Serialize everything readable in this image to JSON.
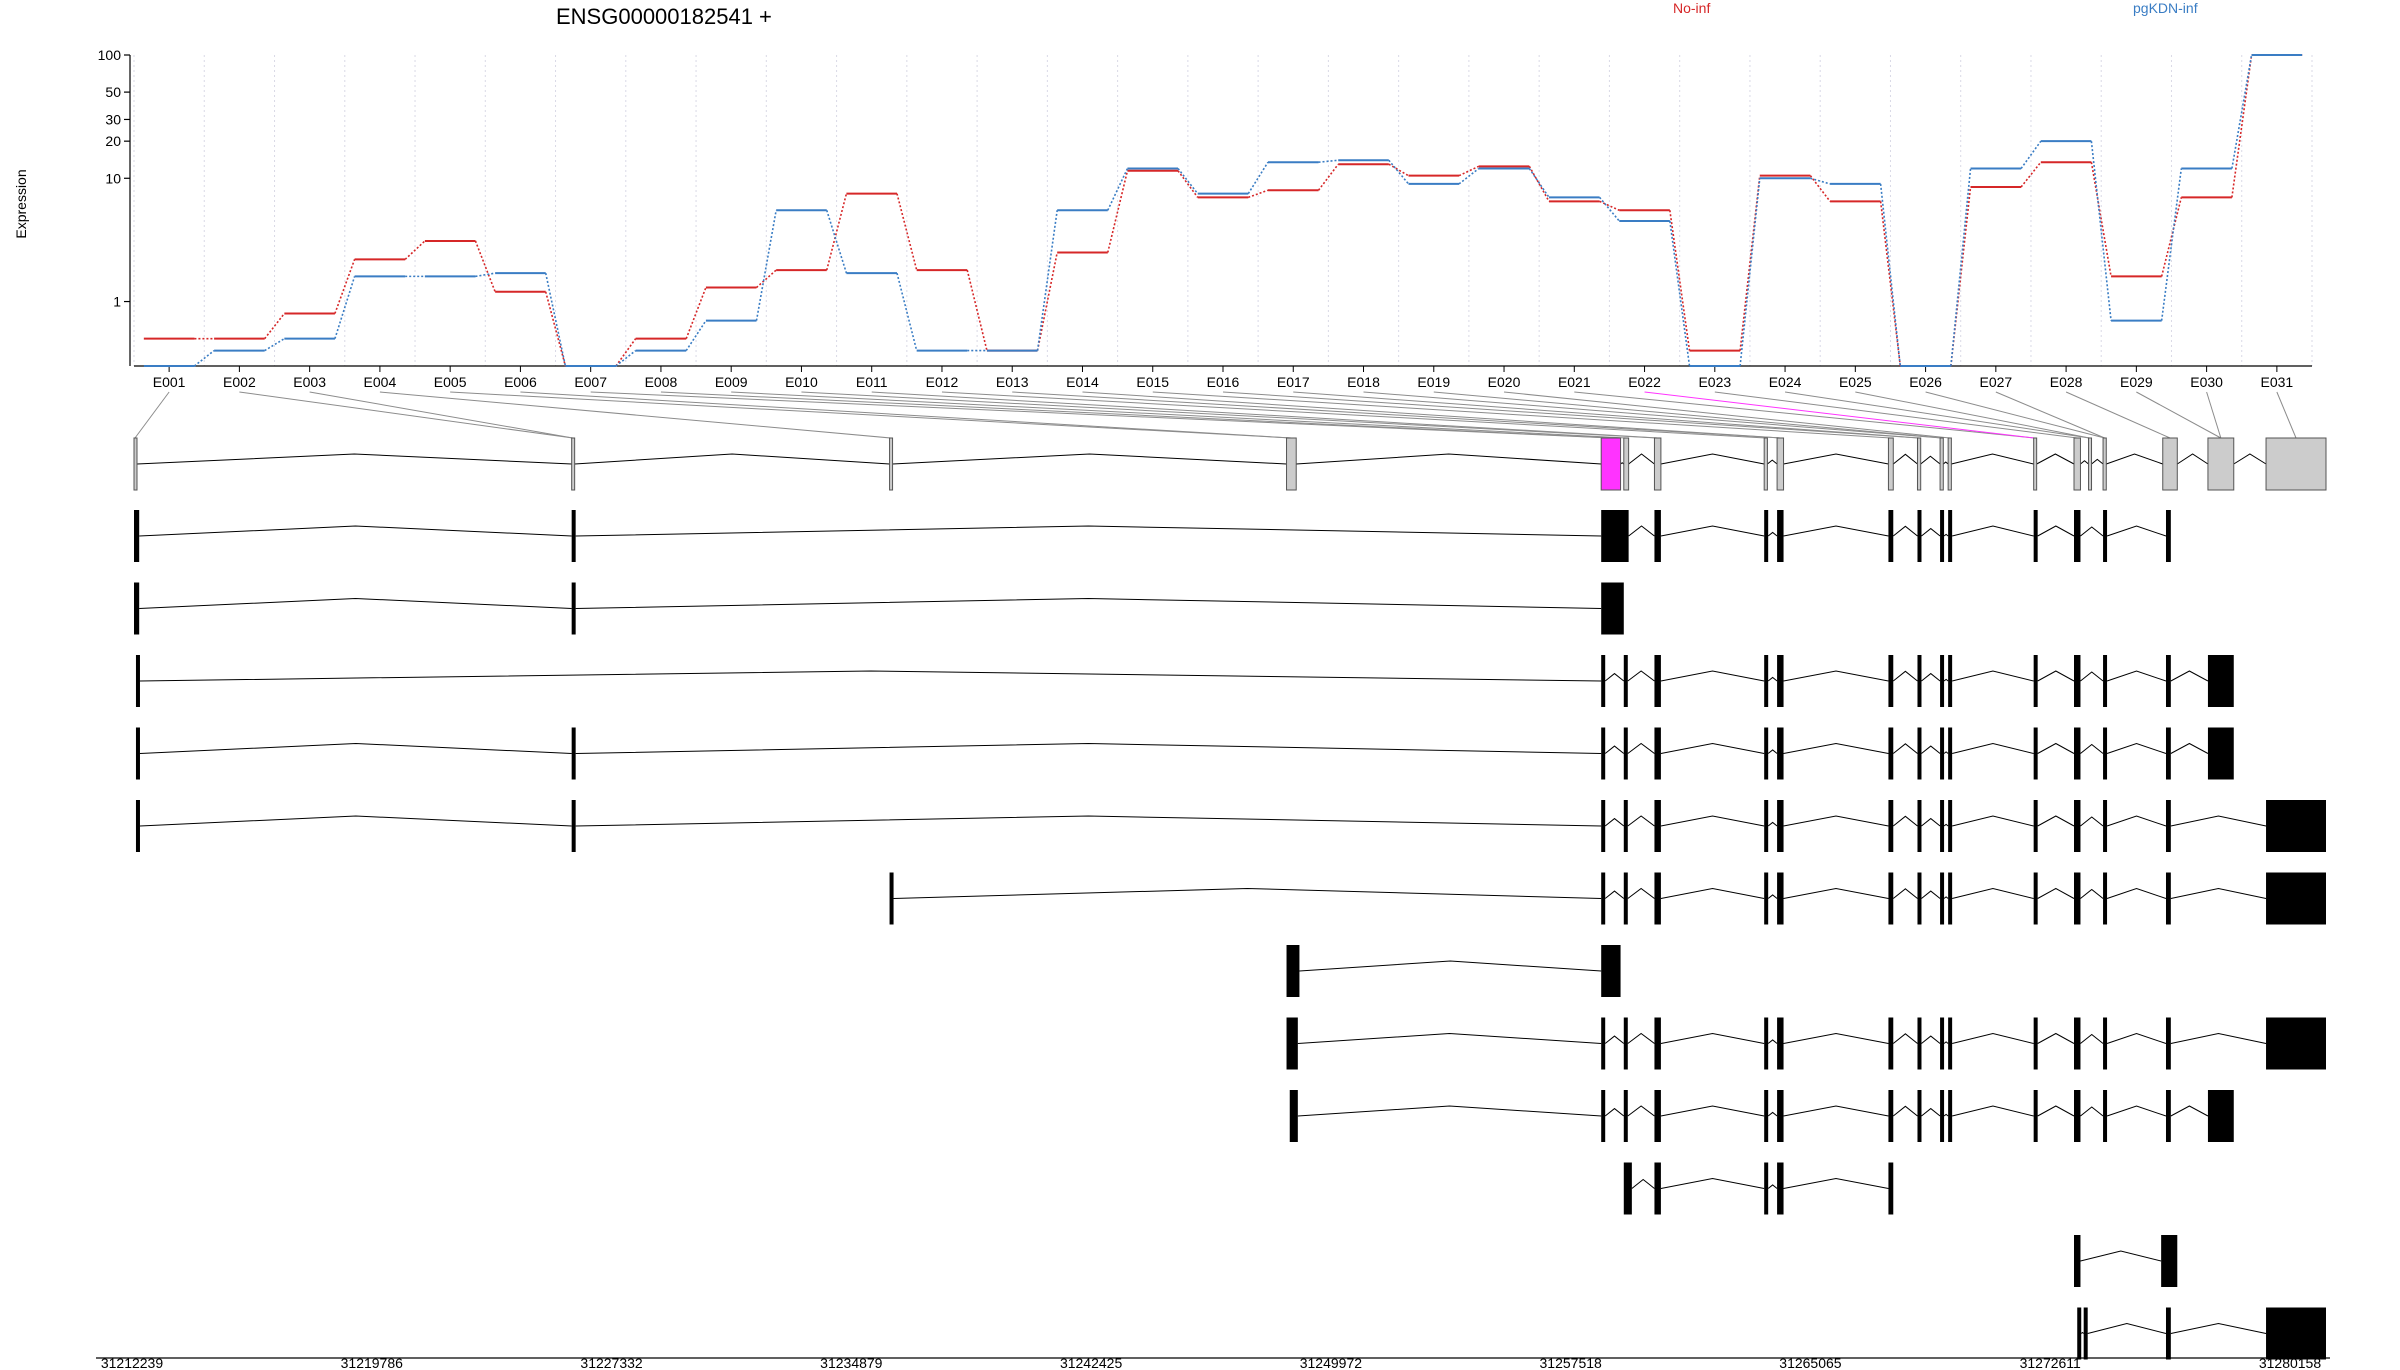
{
  "chart_data": {
    "type": "line",
    "title": "ENSG00000182541 +",
    "ylabel": "Expression",
    "xlabel": "",
    "y_scale": "log",
    "ylim": [
      0.3,
      100
    ],
    "y_ticks": [
      1,
      10,
      20,
      30,
      50,
      100
    ],
    "grid": "vertical dotted lines at exon bins",
    "legend_placement": "top, labels colored by series",
    "categories": [
      "E001",
      "E002",
      "E003",
      "E004",
      "E005",
      "E006",
      "E007",
      "E008",
      "E009",
      "E010",
      "E011",
      "E012",
      "E013",
      "E014",
      "E015",
      "E016",
      "E017",
      "E018",
      "E019",
      "E020",
      "E021",
      "E022",
      "E023",
      "E024",
      "E025",
      "E026",
      "E027",
      "E028",
      "E029",
      "E030",
      "E031"
    ],
    "series": [
      {
        "name": "No-inf",
        "color": "#d62728",
        "values": [
          0.5,
          0.5,
          0.8,
          2.2,
          3.1,
          1.2,
          0.3,
          0.5,
          1.3,
          1.8,
          7.5,
          1.8,
          0.4,
          2.5,
          11.5,
          7.0,
          8.0,
          13.0,
          10.5,
          12.5,
          6.5,
          5.5,
          0.4,
          10.5,
          6.5,
          0.3,
          8.5,
          13.5,
          1.6,
          7.0,
          100
        ]
      },
      {
        "name": "pgKDN-inf",
        "color": "#3a7dc4",
        "values": [
          0.3,
          0.4,
          0.5,
          1.6,
          1.6,
          1.7,
          0.3,
          0.4,
          0.7,
          5.5,
          1.7,
          0.4,
          0.4,
          5.5,
          12.0,
          7.5,
          13.5,
          14.0,
          9.0,
          12.0,
          7.0,
          4.5,
          0.3,
          10.0,
          9.0,
          0.3,
          12.0,
          20.0,
          0.7,
          12.0,
          100
        ]
      }
    ],
    "genomic_axis_labels": [
      "31212239",
      "31219786",
      "31227332",
      "31234879",
      "31242425",
      "31249972",
      "31257518",
      "31265065",
      "31272611",
      "31280158"
    ],
    "genomic_range": [
      31212239,
      31280158
    ],
    "highlighted_exon": "E022",
    "highlight_color": "#ff33ff",
    "gene_model": [
      [
        31212239,
        31212300
      ],
      [
        31225800,
        31225870
      ],
      [
        31235650,
        31235720
      ],
      [
        31247950,
        31248250
      ],
      [
        31257700,
        31258300
      ],
      [
        31258400,
        31258550
      ],
      [
        31259350,
        31259550
      ],
      [
        31262750,
        31262850
      ],
      [
        31263150,
        31263350
      ],
      [
        31266600,
        31266750
      ],
      [
        31267500,
        31267600
      ],
      [
        31268200,
        31268300
      ],
      [
        31268450,
        31268550
      ],
      [
        31271100,
        31271150
      ],
      [
        31272350,
        31272550
      ],
      [
        31272800,
        31272850
      ],
      [
        31273250,
        31273350
      ],
      [
        31275100,
        31275550
      ],
      [
        31276500,
        31277300
      ],
      [
        31278300,
        31280158
      ]
    ],
    "transcripts": [
      [
        [
          31212239,
          31212400
        ],
        [
          31225800,
          31225900
        ],
        [
          31257700,
          31258550
        ],
        [
          31259350,
          31259550
        ],
        [
          31262750,
          31262850
        ],
        [
          31263150,
          31263350
        ],
        [
          31266600,
          31266750
        ],
        [
          31267500,
          31267600
        ],
        [
          31268200,
          31268300
        ],
        [
          31268450,
          31268550
        ],
        [
          31271100,
          31271150
        ],
        [
          31272350,
          31272550
        ],
        [
          31273250,
          31273350
        ],
        [
          31275200,
          31275350
        ]
      ],
      [
        [
          31212239,
          31212400
        ],
        [
          31225800,
          31225900
        ],
        [
          31257700,
          31258400
        ]
      ],
      [
        [
          31212300,
          31212400
        ],
        [
          31257700,
          31257800
        ],
        [
          31258400,
          31258500
        ],
        [
          31259350,
          31259550
        ],
        [
          31262750,
          31262850
        ],
        [
          31263150,
          31263350
        ],
        [
          31266600,
          31266750
        ],
        [
          31267500,
          31267600
        ],
        [
          31268200,
          31268300
        ],
        [
          31268450,
          31268550
        ],
        [
          31271100,
          31271150
        ],
        [
          31272350,
          31272550
        ],
        [
          31273250,
          31273350
        ],
        [
          31275200,
          31275350
        ],
        [
          31276500,
          31277300
        ]
      ],
      [
        [
          31212300,
          31212400
        ],
        [
          31225800,
          31225900
        ],
        [
          31257700,
          31257800
        ],
        [
          31258400,
          31258500
        ],
        [
          31259350,
          31259550
        ],
        [
          31262750,
          31262850
        ],
        [
          31263150,
          31263350
        ],
        [
          31266600,
          31266750
        ],
        [
          31267500,
          31267600
        ],
        [
          31268200,
          31268300
        ],
        [
          31268450,
          31268550
        ],
        [
          31271100,
          31271150
        ],
        [
          31272350,
          31272550
        ],
        [
          31273250,
          31273350
        ],
        [
          31275200,
          31275350
        ],
        [
          31276500,
          31277300
        ]
      ],
      [
        [
          31212300,
          31212400
        ],
        [
          31225800,
          31225900
        ],
        [
          31257700,
          31257800
        ],
        [
          31258400,
          31258500
        ],
        [
          31259350,
          31259550
        ],
        [
          31262750,
          31262850
        ],
        [
          31263150,
          31263350
        ],
        [
          31266600,
          31266750
        ],
        [
          31267500,
          31267600
        ],
        [
          31268200,
          31268300
        ],
        [
          31268450,
          31268550
        ],
        [
          31271100,
          31271150
        ],
        [
          31272350,
          31272550
        ],
        [
          31273250,
          31273350
        ],
        [
          31275200,
          31275350
        ],
        [
          31278300,
          31280158
        ]
      ],
      [
        [
          31235650,
          31235750
        ],
        [
          31257700,
          31257800
        ],
        [
          31258400,
          31258500
        ],
        [
          31259350,
          31259550
        ],
        [
          31262750,
          31262850
        ],
        [
          31263150,
          31263350
        ],
        [
          31266600,
          31266750
        ],
        [
          31267500,
          31267600
        ],
        [
          31268200,
          31268300
        ],
        [
          31268450,
          31268550
        ],
        [
          31271100,
          31271150
        ],
        [
          31272350,
          31272550
        ],
        [
          31273250,
          31273350
        ],
        [
          31275200,
          31275350
        ],
        [
          31278300,
          31280158
        ]
      ],
      [
        [
          31247950,
          31248350
        ],
        [
          31257700,
          31258300
        ]
      ],
      [
        [
          31247950,
          31248300
        ],
        [
          31257700,
          31257800
        ],
        [
          31258400,
          31258500
        ],
        [
          31259350,
          31259550
        ],
        [
          31262750,
          31262850
        ],
        [
          31263150,
          31263350
        ],
        [
          31266600,
          31266750
        ],
        [
          31267500,
          31267600
        ],
        [
          31268200,
          31268300
        ],
        [
          31268450,
          31268550
        ],
        [
          31271100,
          31271150
        ],
        [
          31272350,
          31272550
        ],
        [
          31273250,
          31273350
        ],
        [
          31275200,
          31275350
        ],
        [
          31278300,
          31280158
        ]
      ],
      [
        [
          31248050,
          31248300
        ],
        [
          31257700,
          31257800
        ],
        [
          31258400,
          31258500
        ],
        [
          31259350,
          31259550
        ],
        [
          31262750,
          31262850
        ],
        [
          31263150,
          31263350
        ],
        [
          31266600,
          31266750
        ],
        [
          31267500,
          31267600
        ],
        [
          31268200,
          31268300
        ],
        [
          31268450,
          31268550
        ],
        [
          31271100,
          31271150
        ],
        [
          31272350,
          31272550
        ],
        [
          31273250,
          31273350
        ],
        [
          31275200,
          31275350
        ],
        [
          31276500,
          31277300
        ]
      ],
      [
        [
          31258400,
          31258650
        ],
        [
          31259350,
          31259550
        ],
        [
          31262750,
          31262850
        ],
        [
          31263150,
          31263350
        ],
        [
          31266600,
          31266750
        ]
      ],
      [
        [
          31272350,
          31272550
        ],
        [
          31275050,
          31275550
        ]
      ],
      [
        [
          31272450,
          31272550
        ],
        [
          31272650,
          31272750
        ],
        [
          31275200,
          31275350
        ],
        [
          31278300,
          31280158
        ]
      ]
    ]
  }
}
